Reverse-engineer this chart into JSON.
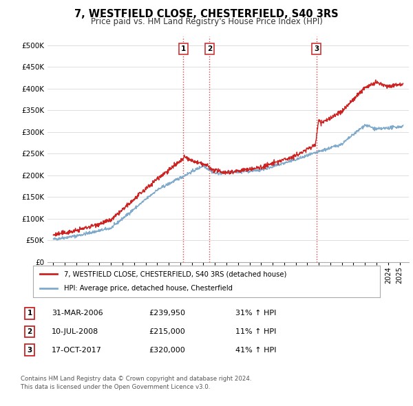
{
  "title": "7, WESTFIELD CLOSE, CHESTERFIELD, S40 3RS",
  "subtitle": "Price paid vs. HM Land Registry's House Price Index (HPI)",
  "yticks": [
    0,
    50000,
    100000,
    150000,
    200000,
    250000,
    300000,
    350000,
    400000,
    450000,
    500000
  ],
  "ytick_labels": [
    "£0",
    "£50K",
    "£100K",
    "£150K",
    "£200K",
    "£250K",
    "£300K",
    "£350K",
    "£400K",
    "£450K",
    "£500K"
  ],
  "xlim_start": 1994.5,
  "xlim_end": 2025.8,
  "ylim_min": 0,
  "ylim_max": 520000,
  "hpi_color": "#7faacc",
  "price_color": "#cc2222",
  "vline_color": "#cc3333",
  "background_color": "#ffffff",
  "grid_color": "#dddddd",
  "legend_items": [
    "7, WESTFIELD CLOSE, CHESTERFIELD, S40 3RS (detached house)",
    "HPI: Average price, detached house, Chesterfield"
  ],
  "sales": [
    {
      "num": 1,
      "x": 2006.25,
      "price": 239950
    },
    {
      "num": 2,
      "x": 2008.53,
      "price": 215000
    },
    {
      "num": 3,
      "x": 2017.79,
      "price": 320000
    }
  ],
  "table_rows": [
    {
      "num": 1,
      "date": "31-MAR-2006",
      "price": "£239,950",
      "pct": "31% ↑ HPI"
    },
    {
      "num": 2,
      "date": "10-JUL-2008",
      "price": "£215,000",
      "pct": "11% ↑ HPI"
    },
    {
      "num": 3,
      "date": "17-OCT-2017",
      "price": "£320,000",
      "pct": "41% ↑ HPI"
    }
  ],
  "footer": "Contains HM Land Registry data © Crown copyright and database right 2024.\nThis data is licensed under the Open Government Licence v3.0."
}
